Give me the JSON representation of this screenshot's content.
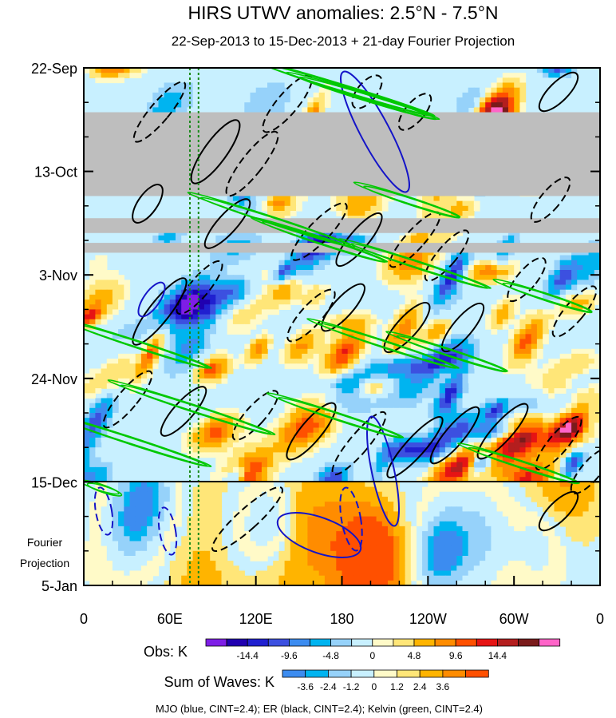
{
  "chart_data": {
    "type": "heatmap",
    "title": "HIRS UTWV anomalies: 2.5°N - 7.5°N",
    "subtitle": "22-Sep-2013 to 15-Dec-2013 + 21-day Fourier Projection",
    "y_ticks": [
      "22-Sep",
      "13-Oct",
      "3-Nov",
      "24-Nov",
      "15-Dec",
      "5-Jan"
    ],
    "x_ticks": [
      "0",
      "60E",
      "120E",
      "180",
      "120W",
      "60W",
      "0"
    ],
    "x_range_degrees_east": [
      0,
      360
    ],
    "y_range_days_since_22_sep": [
      0,
      105
    ],
    "projection_label_line1": "Fourier",
    "projection_label_line2": "Projection",
    "projection_start": "15-Dec",
    "missing_data_color": "#bebebe",
    "reference_longitudes_degrees_east": [
      74,
      80
    ],
    "obs_colorbar": {
      "label": "Obs: K",
      "colors": [
        "#7e1ee6",
        "#2000b0",
        "#2020d0",
        "#3c50e0",
        "#3c8cf0",
        "#00b4f0",
        "#96d2fa",
        "#c8f0ff",
        "#fffac8",
        "#ffe678",
        "#ffb400",
        "#ff8c00",
        "#ff5000",
        "#e61414",
        "#b41e1e",
        "#7a1b1b",
        "#ff64c8"
      ],
      "labels": [
        "-14.4",
        "-9.6",
        "-4.8",
        "0",
        "4.8",
        "9.6",
        "14.4"
      ]
    },
    "waves_colorbar": {
      "label": "Sum of Waves: K",
      "colors": [
        "#3c8cf0",
        "#00b4f0",
        "#96d2fa",
        "#c8f0ff",
        "#fffac8",
        "#ffe678",
        "#ffb400",
        "#ff8c00",
        "#ff5000"
      ],
      "labels": [
        "-3.6",
        "-2.4",
        "-1.2",
        "0",
        "1.2",
        "2.4",
        "3.6"
      ]
    },
    "footer": "MJO (blue, CINT=2.4); ER (black, CINT=2.4); Kelvin (green, CINT=2.4)",
    "series": [
      {
        "name": "MJO",
        "color": "#1414c8",
        "cint": 2.4
      },
      {
        "name": "ER",
        "color": "#000000",
        "cint": 2.4
      },
      {
        "name": "Kelvin",
        "color": "#00c800",
        "cint": 2.4
      }
    ]
  }
}
